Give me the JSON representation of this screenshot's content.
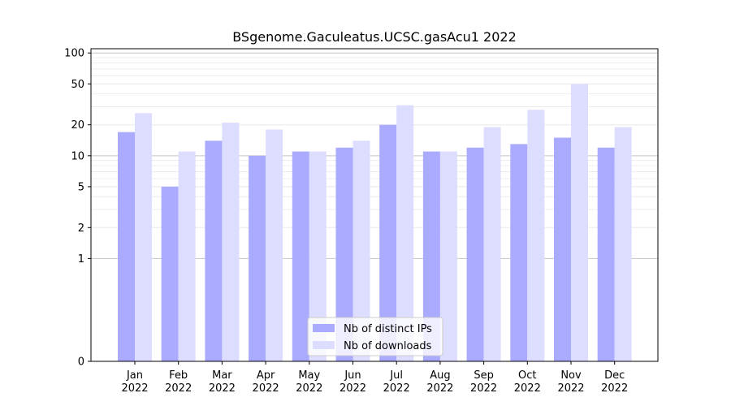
{
  "chart_data": {
    "type": "bar",
    "title": "BSgenome.Gaculeatus.UCSC.gasAcu1 2022",
    "xlabel": "",
    "ylabel": "",
    "y_scale": "symlog",
    "ylim": [
      0,
      110
    ],
    "y_ticks": [
      0,
      1,
      2,
      5,
      10,
      20,
      50,
      100
    ],
    "grid": true,
    "legend_placement": "bottom-center",
    "categories": [
      {
        "month": "Jan",
        "year": "2022"
      },
      {
        "month": "Feb",
        "year": "2022"
      },
      {
        "month": "Mar",
        "year": "2022"
      },
      {
        "month": "Apr",
        "year": "2022"
      },
      {
        "month": "May",
        "year": "2022"
      },
      {
        "month": "Jun",
        "year": "2022"
      },
      {
        "month": "Jul",
        "year": "2022"
      },
      {
        "month": "Aug",
        "year": "2022"
      },
      {
        "month": "Sep",
        "year": "2022"
      },
      {
        "month": "Oct",
        "year": "2022"
      },
      {
        "month": "Nov",
        "year": "2022"
      },
      {
        "month": "Dec",
        "year": "2022"
      }
    ],
    "series": [
      {
        "name": "Nb of distinct IPs",
        "color": "#aaaaff",
        "values": [
          17,
          5,
          14,
          10,
          11,
          12,
          20,
          11,
          12,
          13,
          15,
          12
        ]
      },
      {
        "name": "Nb of downloads",
        "color": "#ddddff",
        "values": [
          26,
          11,
          21,
          18,
          11,
          14,
          31,
          11,
          19,
          28,
          50,
          19
        ]
      }
    ]
  }
}
